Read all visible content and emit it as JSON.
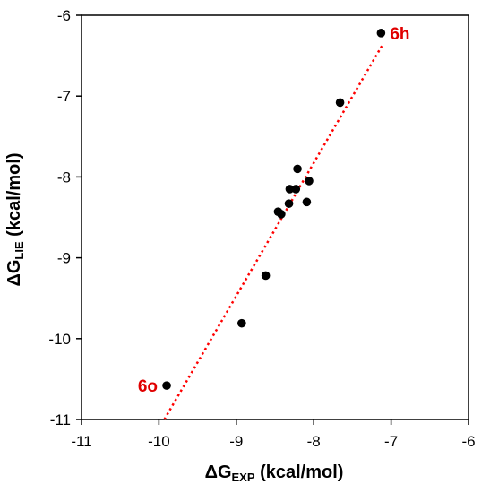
{
  "chart_data": {
    "type": "scatter",
    "xlabel": {
      "main": "ΔG",
      "sub": "EXP",
      "unit": " (kcal/mol)"
    },
    "ylabel": {
      "main": "ΔG",
      "sub": "LIE",
      "unit": " (kcal/mol)"
    },
    "xlim": [
      -11,
      -6
    ],
    "ylim": [
      -11,
      -6
    ],
    "xticks": [
      -11,
      -10,
      -9,
      -8,
      -7,
      -6
    ],
    "yticks": [
      -11,
      -10,
      -9,
      -8,
      -7,
      -6
    ],
    "xtick_labels": [
      "-11",
      "-10",
      "-9",
      "-8",
      "-7",
      "-6"
    ],
    "ytick_labels": [
      "-11",
      "-10",
      "-9",
      "-8",
      "-7",
      "-6"
    ],
    "grid": false,
    "points": [
      {
        "x": -7.13,
        "y": -6.22
      },
      {
        "x": -7.66,
        "y": -7.08
      },
      {
        "x": -8.21,
        "y": -7.9
      },
      {
        "x": -8.06,
        "y": -8.05
      },
      {
        "x": -8.31,
        "y": -8.15
      },
      {
        "x": -8.23,
        "y": -8.15
      },
      {
        "x": -8.32,
        "y": -8.33
      },
      {
        "x": -8.09,
        "y": -8.31
      },
      {
        "x": -8.46,
        "y": -8.43
      },
      {
        "x": -8.42,
        "y": -8.46
      },
      {
        "x": -8.62,
        "y": -9.22
      },
      {
        "x": -8.93,
        "y": -9.81
      },
      {
        "x": -9.9,
        "y": -10.58
      }
    ],
    "trendline": {
      "style": "dotted",
      "color": "#ff0000",
      "x": [
        -9.93,
        -7.12
      ],
      "y": [
        -11.0,
        -6.38
      ]
    },
    "annotations": [
      {
        "text": "6h",
        "x": -7.13,
        "y": -6.22,
        "color": "#e00000",
        "position": "right"
      },
      {
        "text": "6o",
        "x": -9.9,
        "y": -10.58,
        "color": "#e00000",
        "position": "left"
      }
    ],
    "marker_color": "#000000"
  }
}
